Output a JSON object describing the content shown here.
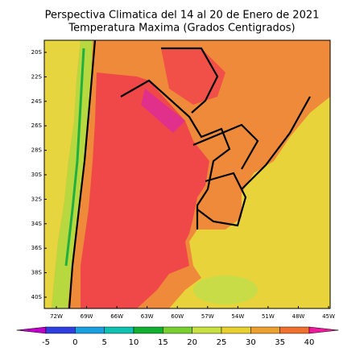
{
  "title": "Perspectiva Climatica del 14 al 20 de Enero de 2021",
  "subtitle": "Temperatura Maxima (Grados Centigrados)",
  "lat_labels": [
    "20S",
    "22S",
    "24S",
    "26S",
    "28S",
    "30S",
    "32S",
    "34S",
    "36S",
    "38S",
    "40S"
  ],
  "lon_labels": [
    "72W",
    "69W",
    "66W",
    "63W",
    "60W",
    "57W",
    "54W",
    "51W",
    "48W",
    "45W"
  ],
  "colorbar": {
    "levels": [
      -5,
      0,
      5,
      10,
      15,
      20,
      25,
      30,
      35,
      40
    ],
    "colors": [
      "#c000c8",
      "#3040e0",
      "#1aa0e0",
      "#10c0b0",
      "#10b030",
      "#78d030",
      "#c8e040",
      "#e8d030",
      "#eca030",
      "#f07030",
      "#f03c3c",
      "#f0189c"
    ]
  }
}
